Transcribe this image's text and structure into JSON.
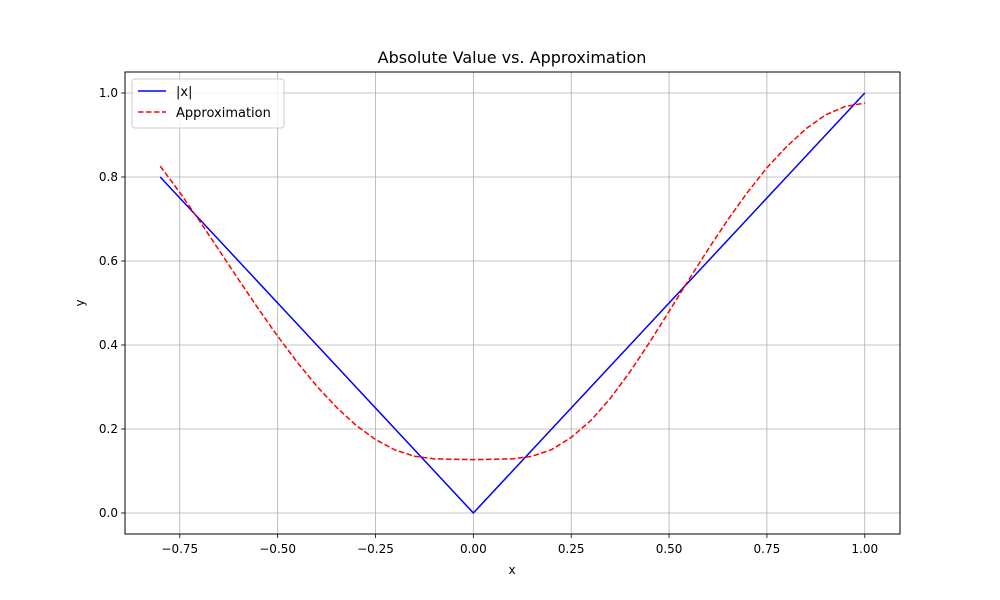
{
  "chart_data": {
    "type": "line",
    "title": "Absolute Value vs. Approximation",
    "xlabel": "x",
    "ylabel": "y",
    "xlim": [
      -0.89,
      1.09
    ],
    "ylim": [
      -0.05,
      1.05
    ],
    "xticks": [
      -0.75,
      -0.5,
      -0.25,
      0.0,
      0.25,
      0.5,
      0.75,
      1.0
    ],
    "xtick_labels": [
      "−0.75",
      "−0.50",
      "−0.25",
      "0.00",
      "0.25",
      "0.50",
      "0.75",
      "1.00"
    ],
    "yticks": [
      0.0,
      0.2,
      0.4,
      0.6,
      0.8,
      1.0
    ],
    "ytick_labels": [
      "0.0",
      "0.2",
      "0.4",
      "0.6",
      "0.8",
      "1.0"
    ],
    "grid": true,
    "legend_position": "top-left",
    "series": [
      {
        "name": "|x|",
        "color": "#0000ff",
        "style": "solid",
        "x": [
          -0.8,
          -0.7,
          -0.6,
          -0.5,
          -0.4,
          -0.3,
          -0.2,
          -0.1,
          0.0,
          0.1,
          0.2,
          0.3,
          0.4,
          0.5,
          0.6,
          0.7,
          0.8,
          0.9,
          1.0
        ],
        "y": [
          0.8,
          0.7,
          0.6,
          0.5,
          0.4,
          0.3,
          0.2,
          0.1,
          0.0,
          0.1,
          0.2,
          0.3,
          0.4,
          0.5,
          0.6,
          0.7,
          0.8,
          0.9,
          1.0
        ]
      },
      {
        "name": "Approximation",
        "color": "#ff0000",
        "style": "dashed",
        "x": [
          -0.8,
          -0.75,
          -0.7,
          -0.65,
          -0.6,
          -0.55,
          -0.5,
          -0.45,
          -0.4,
          -0.35,
          -0.3,
          -0.25,
          -0.2,
          -0.15,
          -0.1,
          -0.05,
          0.0,
          0.05,
          0.1,
          0.15,
          0.2,
          0.25,
          0.3,
          0.35,
          0.4,
          0.45,
          0.5,
          0.55,
          0.6,
          0.65,
          0.7,
          0.75,
          0.8,
          0.85,
          0.9,
          0.95,
          1.0
        ],
        "y": [
          0.826,
          0.763,
          0.696,
          0.626,
          0.556,
          0.487,
          0.421,
          0.359,
          0.302,
          0.252,
          0.209,
          0.175,
          0.15,
          0.135,
          0.129,
          0.128,
          0.127,
          0.128,
          0.129,
          0.135,
          0.151,
          0.18,
          0.22,
          0.273,
          0.336,
          0.406,
          0.48,
          0.555,
          0.628,
          0.698,
          0.763,
          0.822,
          0.872,
          0.915,
          0.948,
          0.968,
          0.976
        ]
      }
    ]
  }
}
